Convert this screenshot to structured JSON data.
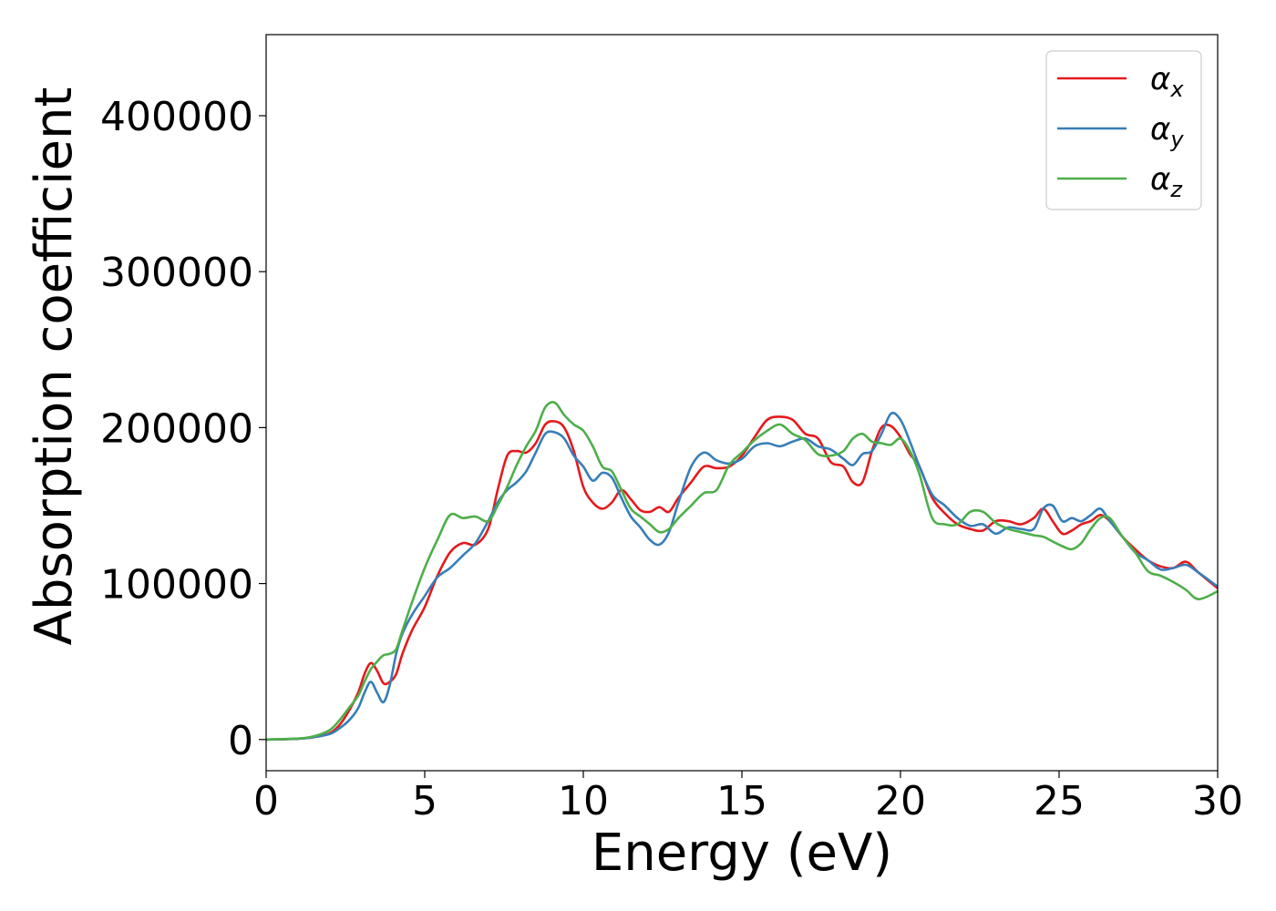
{
  "chart_data": {
    "type": "line",
    "xlabel": "Energy (eV)",
    "ylabel": "Absorption coefficient",
    "xlim": [
      0,
      30
    ],
    "ylim": [
      -20000,
      452000
    ],
    "xticks": [
      0,
      5,
      10,
      15,
      20,
      25,
      30
    ],
    "yticks": [
      0,
      100000,
      200000,
      300000,
      400000
    ],
    "grid": false,
    "legend_position": "top-right",
    "series": [
      {
        "name": "αx",
        "name_base": "α",
        "name_sub": "x",
        "color": "#e41a1c",
        "x": [
          0,
          1,
          1.5,
          2,
          2.3,
          2.6,
          2.9,
          3.1,
          3.3,
          3.5,
          3.7,
          3.9,
          4.1,
          4.3,
          4.6,
          5.0,
          5.4,
          5.8,
          6.2,
          6.6,
          7.0,
          7.3,
          7.6,
          7.9,
          8.2,
          8.5,
          8.8,
          9.1,
          9.4,
          9.7,
          10.0,
          10.3,
          10.6,
          10.9,
          11.2,
          11.5,
          11.8,
          12.1,
          12.4,
          12.7,
          13.0,
          13.4,
          13.8,
          14.2,
          14.6,
          15.0,
          15.4,
          15.8,
          16.2,
          16.6,
          17.0,
          17.4,
          17.8,
          18.2,
          18.5,
          18.8,
          19.1,
          19.4,
          19.7,
          20.0,
          20.3,
          20.6,
          21.0,
          21.4,
          21.8,
          22.2,
          22.6,
          23.0,
          23.4,
          23.8,
          24.2,
          24.5,
          24.8,
          25.1,
          25.4,
          25.7,
          26.0,
          26.3,
          26.6,
          27.0,
          27.4,
          27.8,
          28.2,
          28.6,
          29.0,
          29.4,
          30.0
        ],
        "y": [
          0,
          500,
          1500,
          4000,
          9000,
          18000,
          30000,
          42000,
          49000,
          44000,
          36000,
          37000,
          42000,
          55000,
          70000,
          85000,
          105000,
          120000,
          126000,
          125000,
          135000,
          160000,
          182000,
          185000,
          184000,
          190000,
          202000,
          204000,
          200000,
          185000,
          162000,
          152000,
          148000,
          152000,
          160000,
          154000,
          147000,
          146000,
          149000,
          146000,
          155000,
          165000,
          175000,
          174000,
          175000,
          182000,
          194000,
          205000,
          207000,
          205000,
          196000,
          193000,
          178000,
          175000,
          165000,
          165000,
          185000,
          200000,
          201000,
          194000,
          183000,
          175000,
          155000,
          145000,
          138000,
          135000,
          134000,
          140000,
          140000,
          138000,
          142000,
          148000,
          140000,
          132000,
          134000,
          138000,
          140000,
          144000,
          140000,
          130000,
          122000,
          115000,
          111000,
          110000,
          114000,
          107000,
          97000
        ]
      },
      {
        "name": "αy",
        "name_base": "α",
        "name_sub": "y",
        "color": "#377eb8",
        "x": [
          0,
          1,
          1.5,
          2,
          2.3,
          2.6,
          2.9,
          3.1,
          3.3,
          3.5,
          3.7,
          3.9,
          4.1,
          4.3,
          4.6,
          5.0,
          5.4,
          5.8,
          6.2,
          6.6,
          7.0,
          7.3,
          7.6,
          7.9,
          8.2,
          8.5,
          8.8,
          9.1,
          9.4,
          9.7,
          10.0,
          10.3,
          10.6,
          10.9,
          11.2,
          11.5,
          11.8,
          12.1,
          12.4,
          12.7,
          13.0,
          13.4,
          13.8,
          14.2,
          14.6,
          15.0,
          15.4,
          15.8,
          16.2,
          16.6,
          17.0,
          17.4,
          17.8,
          18.2,
          18.5,
          18.8,
          19.1,
          19.4,
          19.7,
          20.0,
          20.3,
          20.6,
          21.0,
          21.4,
          21.8,
          22.2,
          22.6,
          23.0,
          23.4,
          23.8,
          24.2,
          24.5,
          24.8,
          25.1,
          25.4,
          25.7,
          26.0,
          26.3,
          26.6,
          27.0,
          27.4,
          27.8,
          28.2,
          28.6,
          29.0,
          29.4,
          30.0
        ],
        "y": [
          0,
          500,
          1500,
          3500,
          7000,
          12000,
          20000,
          30000,
          37000,
          30000,
          24000,
          35000,
          55000,
          68000,
          80000,
          92000,
          104000,
          110000,
          118000,
          126000,
          140000,
          152000,
          160000,
          165000,
          172000,
          184000,
          196000,
          197000,
          193000,
          182000,
          175000,
          166000,
          171000,
          168000,
          155000,
          143000,
          136000,
          128000,
          125000,
          133000,
          152000,
          175000,
          184000,
          179000,
          177000,
          180000,
          188000,
          190000,
          188000,
          191000,
          193000,
          188000,
          186000,
          180000,
          176000,
          183000,
          185000,
          196000,
          209000,
          205000,
          191000,
          175000,
          157000,
          150000,
          142000,
          137000,
          138000,
          132000,
          136000,
          135000,
          135000,
          148000,
          150000,
          140000,
          142000,
          140000,
          144000,
          148000,
          140000,
          130000,
          120000,
          115000,
          109000,
          110000,
          112000,
          107000,
          98000
        ]
      },
      {
        "name": "αz",
        "name_base": "α",
        "name_sub": "z",
        "color": "#4daf4a",
        "x": [
          0,
          1,
          1.5,
          2,
          2.3,
          2.6,
          2.9,
          3.1,
          3.3,
          3.5,
          3.7,
          3.9,
          4.1,
          4.3,
          4.6,
          5.0,
          5.4,
          5.8,
          6.2,
          6.6,
          7.0,
          7.3,
          7.6,
          7.9,
          8.2,
          8.5,
          8.8,
          9.1,
          9.4,
          9.7,
          10.0,
          10.3,
          10.6,
          10.9,
          11.2,
          11.5,
          11.8,
          12.1,
          12.4,
          12.7,
          13.0,
          13.4,
          13.8,
          14.2,
          14.6,
          15.0,
          15.4,
          15.8,
          16.2,
          16.6,
          17.0,
          17.4,
          17.8,
          18.2,
          18.5,
          18.8,
          19.1,
          19.4,
          19.7,
          20.0,
          20.3,
          20.6,
          21.0,
          21.4,
          21.8,
          22.2,
          22.6,
          23.0,
          23.4,
          23.8,
          24.2,
          24.5,
          24.8,
          25.1,
          25.4,
          25.7,
          26.0,
          26.3,
          26.6,
          27.0,
          27.4,
          27.8,
          28.2,
          28.6,
          29.0,
          29.4,
          30.0
        ],
        "y": [
          0,
          600,
          2000,
          6000,
          12000,
          20000,
          28000,
          37000,
          45000,
          50000,
          54000,
          55000,
          58000,
          70000,
          88000,
          110000,
          128000,
          144000,
          142000,
          143000,
          140000,
          150000,
          162000,
          176000,
          188000,
          198000,
          213000,
          216000,
          208000,
          202000,
          198000,
          188000,
          175000,
          172000,
          160000,
          148000,
          143000,
          138000,
          133000,
          135000,
          142000,
          150000,
          158000,
          160000,
          176000,
          184000,
          192000,
          198000,
          202000,
          196000,
          192000,
          183000,
          182000,
          185000,
          193000,
          196000,
          191000,
          190000,
          189000,
          193000,
          185000,
          170000,
          142000,
          138000,
          138000,
          146000,
          146000,
          139000,
          135000,
          133000,
          131000,
          130000,
          127000,
          124000,
          122000,
          126000,
          135000,
          142000,
          142000,
          130000,
          120000,
          108000,
          105000,
          101000,
          96000,
          90000,
          95000
        ]
      }
    ]
  }
}
